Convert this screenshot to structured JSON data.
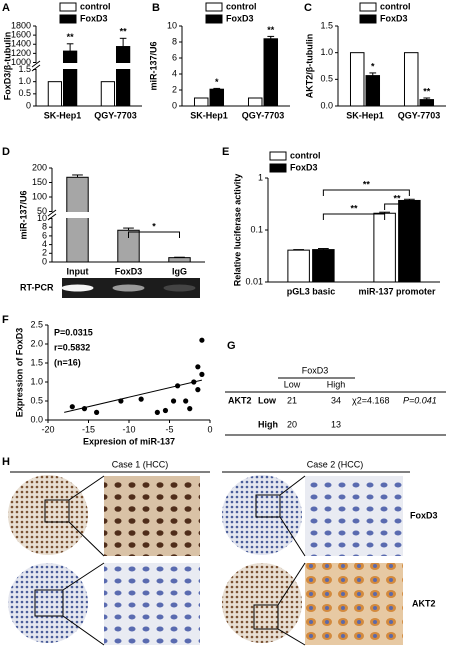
{
  "chart_data": [
    {
      "type": "bar",
      "label": "A",
      "ylabel": "FoxD3/β-tubulin",
      "categories": [
        "SK-Hep1",
        "QGY-7703"
      ],
      "series": [
        {
          "name": "control",
          "color": "#ffffff",
          "values": [
            1,
            1
          ]
        },
        {
          "name": "FoxD3",
          "color": "#000000",
          "values": [
            1250,
            1350
          ],
          "errors": [
            160,
            180
          ],
          "significance": [
            "**",
            "**"
          ]
        }
      ],
      "segments": [
        [
          0,
          1.5
        ],
        [
          1000,
          1800
        ]
      ],
      "yticks": [
        0,
        0.5,
        {
          "value": 1,
          "label": "1.0"
        },
        {
          "value": 1.5,
          "label": "1.5"
        },
        1000,
        1200,
        1400,
        1600,
        1800
      ]
    },
    {
      "type": "bar",
      "label": "B",
      "ylabel": "miR-137/U6",
      "categories": [
        "SK-Hep1",
        "QGY-7703"
      ],
      "series": [
        {
          "name": "control",
          "color": "#ffffff",
          "values": [
            1,
            1
          ]
        },
        {
          "name": "FoxD3",
          "color": "#000000",
          "values": [
            2.1,
            8.4
          ],
          "errors": [
            0.1,
            0.3
          ],
          "significance": [
            "*",
            "**"
          ]
        }
      ],
      "ylim": [
        0,
        10
      ],
      "yticks": [
        0,
        2,
        4,
        6,
        8,
        10
      ]
    },
    {
      "type": "bar",
      "label": "C",
      "ylabel": "AKT2/β-tubulin",
      "categories": [
        "SK-Hep1",
        "QGY-7703"
      ],
      "series": [
        {
          "name": "control",
          "color": "#ffffff",
          "values": [
            1,
            1
          ]
        },
        {
          "name": "FoxD3",
          "color": "#000000",
          "values": [
            0.57,
            0.12
          ],
          "errors": [
            0.05,
            0.03
          ],
          "significance": [
            "*",
            "**"
          ]
        }
      ],
      "ylim": [
        0,
        1.5
      ],
      "yticks": [
        {
          "value": 0,
          "label": "0.0"
        },
        0.5,
        {
          "value": 1,
          "label": "1.0"
        },
        {
          "value": 1.5,
          "label": "1.5"
        }
      ]
    },
    {
      "type": "bar",
      "label": "D",
      "ylabel": "miR-137/U6",
      "categories": [
        "Input",
        "FoxD3",
        "IgG"
      ],
      "values": [
        168,
        7.3,
        1.0
      ],
      "errors": [
        8,
        0.5,
        0.1
      ],
      "color": "#a6a6a6",
      "segments": [
        [
          0,
          10
        ],
        [
          50,
          200
        ]
      ],
      "yticks": [
        0,
        2,
        4,
        6,
        8,
        10,
        50,
        100,
        150,
        200
      ],
      "comparisons": [
        "*"
      ],
      "gel_label": "RT-PCR"
    },
    {
      "type": "bar",
      "label": "E",
      "ylabel": "Relative luciferase activity",
      "categories": [
        "pGL3 basic",
        "miR-137 promoter"
      ],
      "series": [
        {
          "name": "control",
          "color": "#ffffff",
          "values": [
            0.041,
            0.21
          ],
          "errors": [
            0.001,
            0.01
          ]
        },
        {
          "name": "FoxD3",
          "color": "#000000",
          "values": [
            0.042,
            0.37
          ],
          "errors": [
            0.002,
            0.02
          ]
        }
      ],
      "log": true,
      "ylim": [
        0.01,
        1
      ],
      "yticks": [
        0.01,
        0.1,
        1
      ],
      "comparisons": [
        "**",
        "**",
        "**"
      ]
    },
    {
      "type": "scatter",
      "label": "F",
      "xlabel": "Expresion of miR-137",
      "ylabel": "Expression of FoxD3",
      "x": [
        -17,
        -15.5,
        -14,
        -11,
        -8.5,
        -6.5,
        -5.5,
        -4.5,
        -4,
        -3,
        -2.5,
        -2,
        -1.5,
        -1.5,
        -1,
        -1
      ],
      "y": [
        0.35,
        0.3,
        0.2,
        0.5,
        0.55,
        0.2,
        0.25,
        0.5,
        0.9,
        0.5,
        0.3,
        1.0,
        0.8,
        1.4,
        1.2,
        2.1
      ],
      "fit": {
        "x": [
          -18,
          -1
        ],
        "y": [
          0.2,
          1.05
        ]
      },
      "xlim": [
        -20,
        0
      ],
      "xticks": [
        -20,
        -15,
        -10,
        -5,
        0
      ],
      "ylim": [
        0,
        2.5
      ],
      "yticks": [
        {
          "value": 0,
          "label": "0.0"
        },
        0.5,
        {
          "value": 1,
          "label": "1.0"
        },
        {
          "value": 1.5,
          "label": "1.5"
        },
        {
          "value": 2,
          "label": "2.0"
        },
        2.5
      ],
      "annotations": [
        "P=0.0315",
        "r=0.5832",
        "(n=16)"
      ]
    }
  ],
  "table": {
    "label": "G",
    "column_header": "FoxD3",
    "columns": [
      "Low",
      "High"
    ],
    "row_header": "AKT2",
    "rows": [
      [
        "Low",
        "21",
        "34"
      ],
      [
        "High",
        "20",
        "13"
      ]
    ],
    "statistic": "χ2=4.168",
    "p_value": "P=0.041"
  },
  "ihc": {
    "label": "H",
    "cases": [
      "Case 1 (HCC)",
      "Case 2 (HCC)"
    ],
    "markers": [
      "FoxD3",
      "AKT2"
    ]
  }
}
